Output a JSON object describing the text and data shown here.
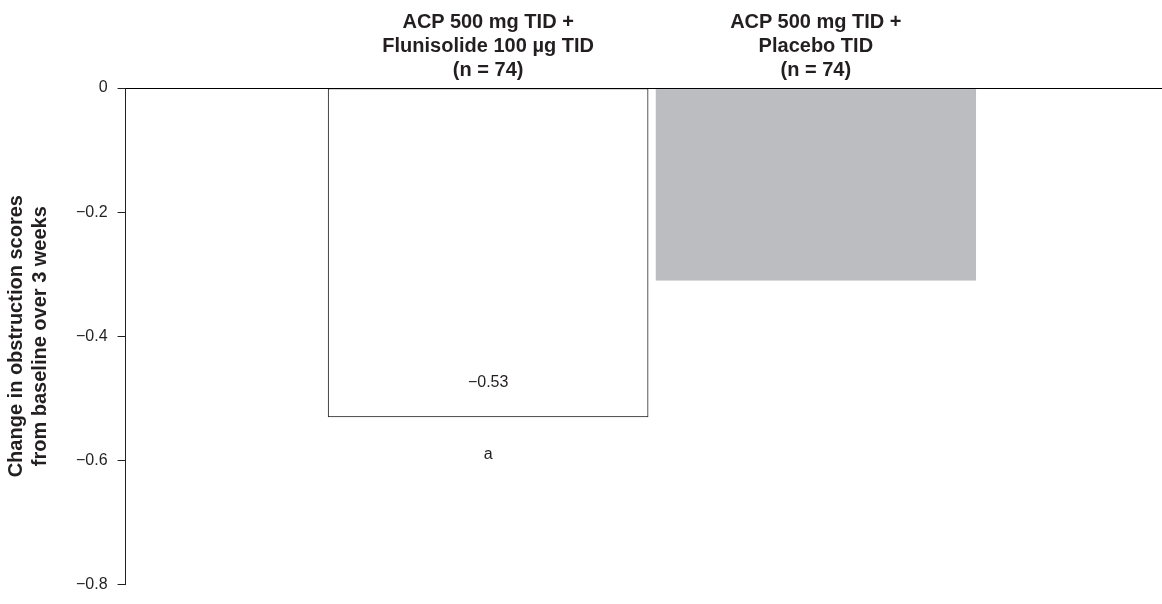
{
  "chart_data": {
    "type": "bar",
    "ylabel": "Change in obstruction scores from baseline over 3 weeks",
    "categories": [
      "ACP 500 mg TID +\nFlunisolide 100 µg TID\n(n = 74)",
      "ACP 500 mg TID +\nPlacebo TID\n(n = 74)"
    ],
    "values": [
      -0.53,
      -0.31
    ],
    "colors": [
      "#ffffff",
      "#bcbdc0"
    ],
    "value_labels": [
      "−0.53",
      null
    ],
    "ylim": [
      -0.8,
      0
    ],
    "yticks": [
      -0.8,
      -0.6,
      -0.4,
      -0.2,
      0
    ],
    "annotations": [
      "a"
    ],
    "grid": false,
    "legend": false
  }
}
